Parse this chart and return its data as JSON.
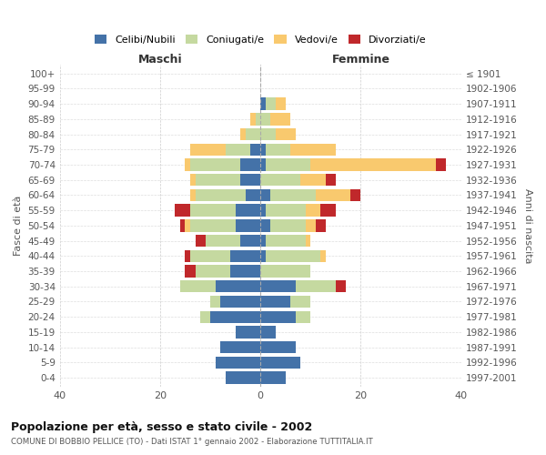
{
  "age_groups": [
    "0-4",
    "5-9",
    "10-14",
    "15-19",
    "20-24",
    "25-29",
    "30-34",
    "35-39",
    "40-44",
    "45-49",
    "50-54",
    "55-59",
    "60-64",
    "65-69",
    "70-74",
    "75-79",
    "80-84",
    "85-89",
    "90-94",
    "95-99",
    "100+"
  ],
  "birth_years": [
    "1997-2001",
    "1992-1996",
    "1987-1991",
    "1982-1986",
    "1977-1981",
    "1972-1976",
    "1967-1971",
    "1962-1966",
    "1957-1961",
    "1952-1956",
    "1947-1951",
    "1942-1946",
    "1937-1941",
    "1932-1936",
    "1927-1931",
    "1922-1926",
    "1917-1921",
    "1912-1916",
    "1907-1911",
    "1902-1906",
    "≤ 1901"
  ],
  "maschi": {
    "celibi": [
      7,
      9,
      8,
      5,
      10,
      8,
      9,
      6,
      6,
      4,
      5,
      5,
      3,
      4,
      4,
      2,
      0,
      0,
      0,
      0,
      0
    ],
    "coniugati": [
      0,
      0,
      0,
      0,
      2,
      2,
      7,
      7,
      8,
      7,
      9,
      9,
      10,
      9,
      10,
      5,
      3,
      1,
      0,
      0,
      0
    ],
    "vedovi": [
      0,
      0,
      0,
      0,
      0,
      0,
      0,
      0,
      0,
      0,
      1,
      0,
      1,
      1,
      1,
      7,
      1,
      1,
      0,
      0,
      0
    ],
    "divorziati": [
      0,
      0,
      0,
      0,
      0,
      0,
      0,
      2,
      1,
      2,
      1,
      3,
      0,
      0,
      0,
      0,
      0,
      0,
      0,
      0,
      0
    ]
  },
  "femmine": {
    "nubili": [
      5,
      8,
      7,
      3,
      7,
      6,
      7,
      0,
      1,
      1,
      2,
      1,
      2,
      0,
      1,
      1,
      0,
      0,
      1,
      0,
      0
    ],
    "coniugate": [
      0,
      0,
      0,
      0,
      3,
      4,
      8,
      10,
      11,
      8,
      7,
      8,
      9,
      8,
      9,
      5,
      3,
      2,
      2,
      0,
      0
    ],
    "vedove": [
      0,
      0,
      0,
      0,
      0,
      0,
      0,
      0,
      1,
      1,
      2,
      3,
      7,
      5,
      25,
      9,
      4,
      4,
      2,
      0,
      0
    ],
    "divorziate": [
      0,
      0,
      0,
      0,
      0,
      0,
      2,
      0,
      0,
      0,
      2,
      3,
      2,
      2,
      2,
      0,
      0,
      0,
      0,
      0,
      0
    ]
  },
  "colors": {
    "celibi_nubili": "#4472a8",
    "coniugati": "#c5d9a0",
    "vedovi": "#f9c96e",
    "divorziati": "#c0282b"
  },
  "title": "Popolazione per età, sesso e stato civile - 2002",
  "subtitle": "COMUNE DI BOBBIO PELLICE (TO) - Dati ISTAT 1° gennaio 2002 - Elaborazione TUTTITALIA.IT",
  "xlabel_left": "Maschi",
  "xlabel_right": "Femmine",
  "ylabel_left": "Fasce di età",
  "ylabel_right": "Anni di nascita",
  "xlim": 40,
  "legend_labels": [
    "Celibi/Nubili",
    "Coniugati/e",
    "Vedovi/e",
    "Divorziati/e"
  ]
}
